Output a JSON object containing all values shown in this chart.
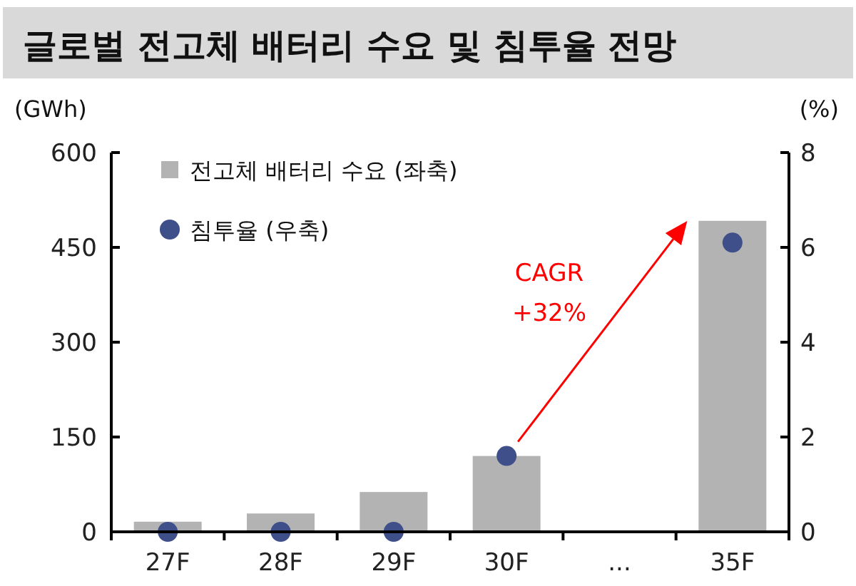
{
  "chart_data": {
    "type": "bar",
    "title": "글로벌 전고체 배터리 수요 및 침투율 전망",
    "categories": [
      "27F",
      "28F",
      "29F",
      "30F",
      "...",
      "35F"
    ],
    "series": [
      {
        "name": "전고체 배터리 수요 (좌축)",
        "color": "#b3b3b3",
        "values": [
          16,
          29,
          63,
          120,
          null,
          492
        ]
      },
      {
        "name": "침투율 (우축)",
        "type": "scatter",
        "axis": "y2",
        "color": "#3f4f8a",
        "marker": "circle",
        "values": [
          0,
          0,
          0,
          1.6,
          null,
          6.1
        ]
      }
    ],
    "ylabel": "(GWh)",
    "y2label": "(%)",
    "ylim": [
      0,
      600
    ],
    "yticks": [
      0,
      150,
      300,
      450,
      600
    ],
    "y2lim": [
      0,
      8
    ],
    "y2ticks": [
      0,
      2,
      4,
      6,
      8
    ],
    "legend": "top left",
    "grid": false,
    "annotations": [
      "CAGR\n+32%"
    ]
  }
}
